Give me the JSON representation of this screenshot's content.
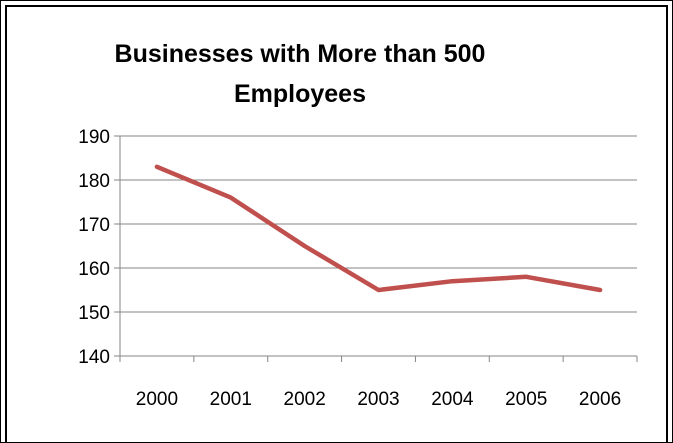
{
  "chart_data": {
    "type": "line",
    "title_lines": [
      "Businesses with More than 500",
      "Employees"
    ],
    "xlabel": "",
    "ylabel": "",
    "categories": [
      "2000",
      "2001",
      "2002",
      "2003",
      "2004",
      "2005",
      "2006"
    ],
    "series": [
      {
        "values": [
          183,
          176,
          165,
          155,
          157,
          158,
          155
        ],
        "color": "#c0504d"
      }
    ],
    "ylim": [
      140,
      190
    ],
    "yticks": [
      140,
      150,
      160,
      170,
      180,
      190
    ],
    "grid": true,
    "legend": "none"
  }
}
